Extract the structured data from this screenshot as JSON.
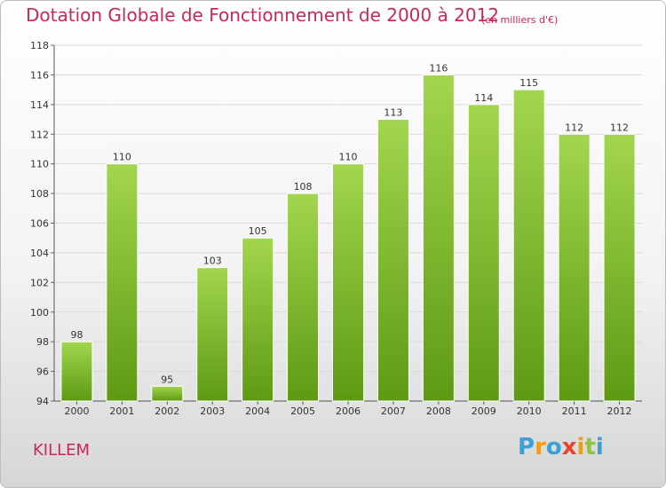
{
  "chart_data": {
    "type": "bar",
    "title": "Dotation Globale de Fonctionnement de 2000 à 2012",
    "subtitle": "(en milliers d'€)",
    "categories": [
      "2000",
      "2001",
      "2002",
      "2003",
      "2004",
      "2005",
      "2006",
      "2007",
      "2008",
      "2009",
      "2010",
      "2011",
      "2012"
    ],
    "values": [
      98,
      110,
      95,
      103,
      105,
      108,
      110,
      113,
      116,
      114,
      115,
      112,
      112
    ],
    "ylim": [
      94,
      118
    ],
    "yticks": [
      94,
      96,
      98,
      100,
      102,
      104,
      106,
      108,
      110,
      112,
      114,
      116,
      118
    ],
    "grid": true,
    "bar_color": "#7fbf2a",
    "title_color": "#c8285a"
  },
  "place_name": "KILLEM",
  "logo": {
    "letters": [
      "P",
      "r",
      "o",
      "x",
      "i",
      "t",
      "i"
    ],
    "colors": [
      "#3aa0d8",
      "#f39c12",
      "#3aa0d8",
      "#e8432e",
      "#f39c12",
      "#8cc63f",
      "#3aa0d8"
    ]
  }
}
